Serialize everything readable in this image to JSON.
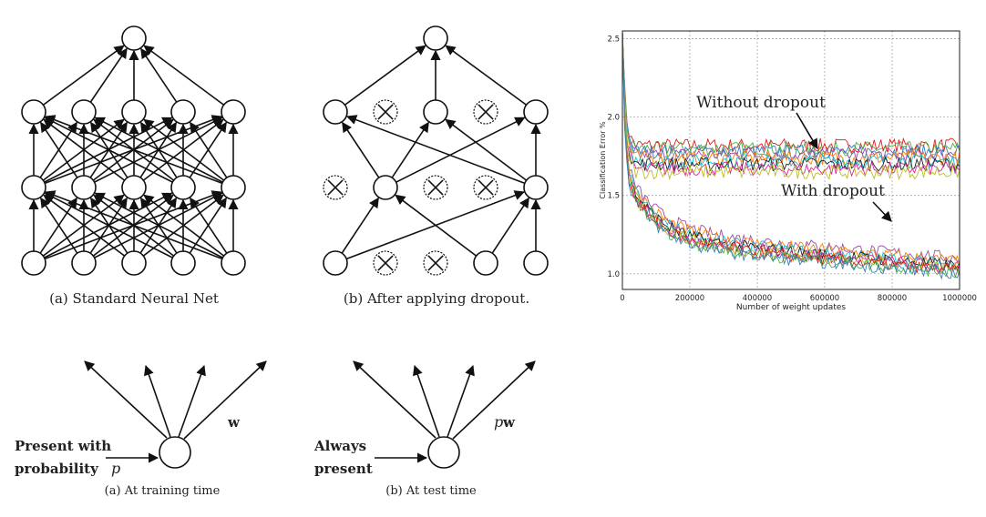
{
  "figure_a": {
    "caption": "(a) Standard Neural Net"
  },
  "figure_b": {
    "caption": "(b) After applying dropout."
  },
  "training": {
    "caption": "(a) At training time",
    "input_label_line1": "Present with",
    "input_label_line2": "probability",
    "input_label_var": "p",
    "weight_label": "w"
  },
  "test": {
    "caption": "(b) At test time",
    "input_label_line1": "Always",
    "input_label_line2": "present",
    "weight_label_var": "p",
    "weight_label": "w"
  },
  "chart_data": {
    "type": "line",
    "title": "",
    "xlabel": "Number of weight updates",
    "ylabel": "Classification Error %",
    "xlim": [
      0,
      1000000
    ],
    "ylim": [
      0.9,
      2.55
    ],
    "xticks": [
      "0",
      "200000",
      "400000",
      "600000",
      "800000",
      "1000000"
    ],
    "yticks": [
      "1.0",
      "1.5",
      "2.0",
      "2.5"
    ],
    "grid": true,
    "annotations": [
      "Without dropout",
      "With dropout"
    ],
    "series_colors": [
      "#e41a1c",
      "#4daf4a",
      "#377eb8",
      "#984ea3",
      "#ff7f00",
      "#17becf",
      "#222222",
      "#d62798",
      "#bcbd22"
    ],
    "groups": [
      {
        "annotation": "Without dropout",
        "x": [
          10000,
          20000,
          40000,
          100000,
          200000,
          400000,
          600000,
          800000,
          1000000
        ],
        "values_range": [
          [
            1.78,
            1.86
          ],
          [
            1.62,
            1.72
          ]
        ],
        "plateau_mean": 1.74
      },
      {
        "annotation": "With dropout",
        "x": [
          10000,
          20000,
          40000,
          100000,
          200000,
          400000,
          600000,
          800000,
          1000000
        ],
        "start": 2.5,
        "values_mean": [
          2.1,
          1.7,
          1.45,
          1.3,
          1.22,
          1.16,
          1.11,
          1.07,
          1.04
        ]
      }
    ]
  }
}
